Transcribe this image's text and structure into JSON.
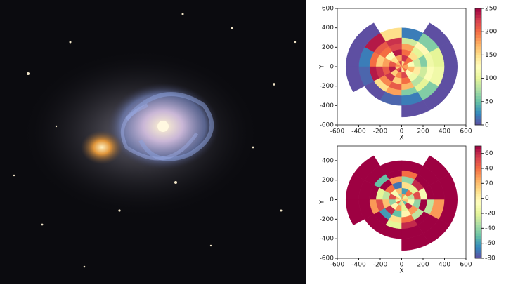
{
  "chart_data": [
    {
      "type": "polar-heatmap",
      "xlabel": "X",
      "ylabel": "Y",
      "xlim": [
        -600,
        600
      ],
      "ylim": [
        -600,
        600
      ],
      "xticks": [
        -600,
        -400,
        -200,
        0,
        200,
        400,
        600
      ],
      "yticks": [
        -600,
        -400,
        -200,
        0,
        200,
        400,
        600
      ],
      "clim": [
        0,
        250
      ],
      "cticks": [
        0,
        50,
        100,
        150,
        200,
        250
      ],
      "colormap": "Spectral_r",
      "r_edges": [
        0,
        60,
        120,
        180,
        240,
        300,
        400,
        520
      ],
      "theta_edges": [
        0,
        30,
        60,
        90,
        120,
        150,
        180,
        210,
        240,
        270,
        300,
        330,
        360
      ],
      "values": [
        [
          180,
          200,
          150,
          220,
          170,
          190,
          160,
          210,
          230,
          140,
          200,
          180
        ],
        [
          120,
          200,
          230,
          180,
          150,
          210,
          240,
          160,
          190,
          220,
          130,
          170
        ],
        [
          90,
          150,
          200,
          240,
          120,
          180,
          210,
          230,
          160,
          200,
          110,
          140
        ],
        [
          60,
          100,
          180,
          220,
          200,
          160,
          230,
          190,
          210,
          170,
          80,
          90
        ],
        [
          110,
          130,
          90,
          230,
          210,
          200,
          240,
          150,
          180,
          60,
          100,
          120
        ],
        [
          100,
          60,
          20,
          150,
          240,
          20,
          10,
          0,
          10,
          20,
          60,
          110
        ],
        [
          0,
          0,
          null,
          null,
          0,
          0,
          0,
          null,
          null,
          0,
          0,
          0
        ]
      ]
    },
    {
      "type": "polar-heatmap",
      "xlabel": "X",
      "ylabel": "Y",
      "xlim": [
        -600,
        600
      ],
      "ylim": [
        -600,
        550
      ],
      "xticks": [
        -600,
        -400,
        -200,
        0,
        200,
        400,
        600
      ],
      "yticks": [
        -600,
        -400,
        -200,
        0,
        200,
        400
      ],
      "clim": [
        -80,
        70
      ],
      "cticks": [
        -80,
        -60,
        -40,
        -20,
        0,
        20,
        40,
        60
      ],
      "colormap": "Spectral_r",
      "r_edges": [
        0,
        60,
        120,
        180,
        240,
        300,
        400,
        520
      ],
      "theta_edges": [
        0,
        30,
        60,
        90,
        120,
        150,
        180,
        210,
        240,
        270,
        300,
        330,
        360
      ],
      "values": [
        [
          10,
          -20,
          30,
          -40,
          0,
          20,
          -10,
          40,
          -30,
          10,
          -50,
          20
        ],
        [
          -30,
          40,
          -60,
          20,
          -10,
          50,
          -40,
          0,
          30,
          -20,
          60,
          -10
        ],
        [
          50,
          -20,
          10,
          -70,
          40,
          -30,
          20,
          60,
          -50,
          0,
          30,
          -40
        ],
        [
          -10,
          60,
          -40,
          30,
          70,
          -20,
          50,
          -60,
          10,
          40,
          -30,
          70
        ],
        [
          70,
          70,
          40,
          70,
          -50,
          70,
          30,
          70,
          -20,
          60,
          70,
          -30
        ],
        [
          70,
          70,
          70,
          70,
          70,
          70,
          70,
          70,
          70,
          70,
          70,
          30
        ],
        [
          70,
          70,
          null,
          null,
          70,
          70,
          70,
          null,
          null,
          70,
          70,
          70
        ]
      ]
    }
  ]
}
